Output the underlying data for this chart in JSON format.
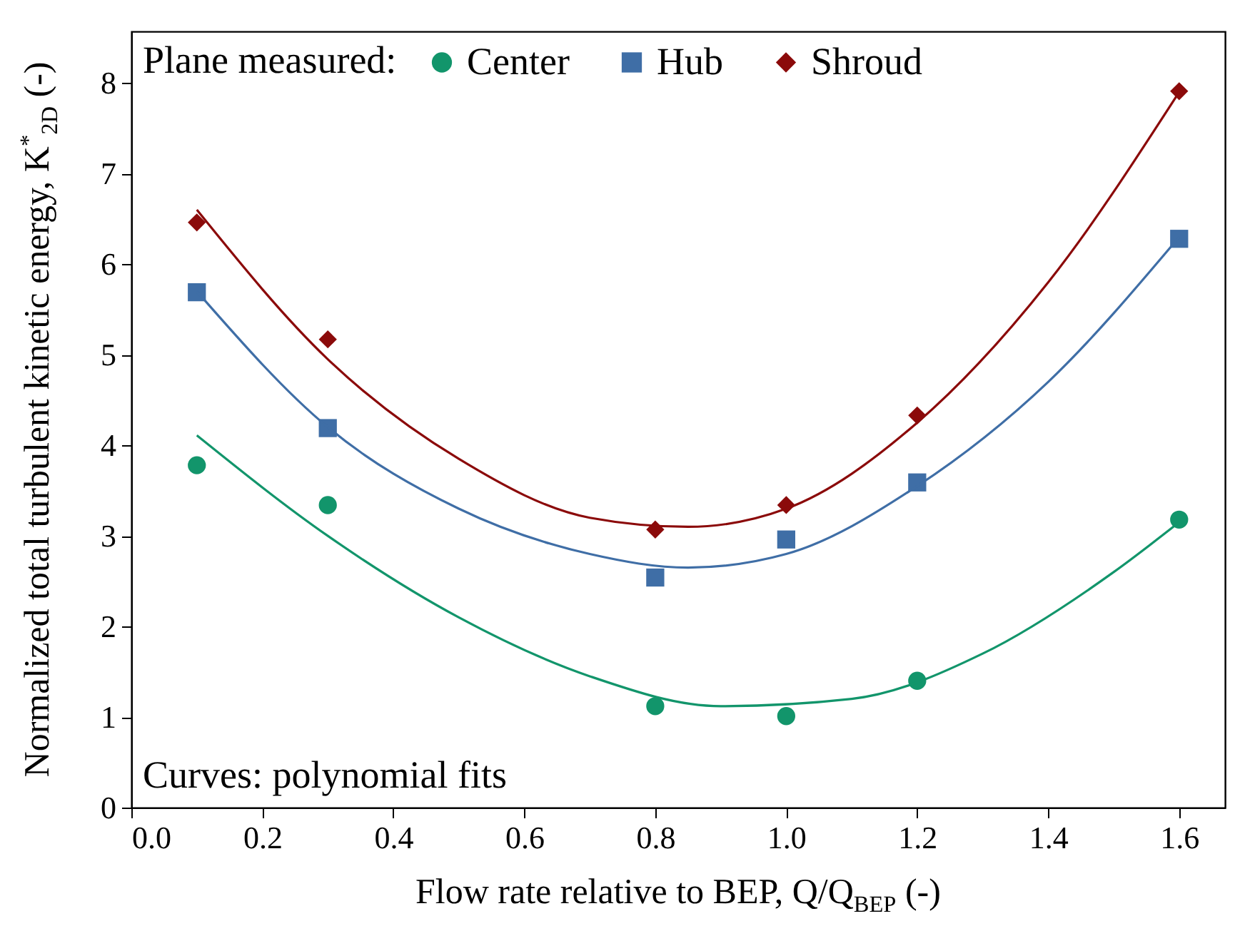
{
  "chart_data": {
    "type": "scatter",
    "xlabel": "Flow rate relative to BEP, Q/Q$_{BEP}$ (-)",
    "ylabel": "Normalized total turbulent kinetic energy, K$^{*}$$_{2D}$ (-)",
    "legend_title": "Plane measured:",
    "legend": "top",
    "grid": false,
    "x": [
      0.1,
      0.3,
      0.8,
      1.0,
      1.2,
      1.6
    ],
    "xlim": [
      0,
      1.67
    ],
    "xticks": [
      {
        "value": 0,
        "label": "0.0"
      },
      0.2,
      0.4,
      0.6,
      0.8,
      {
        "value": 1,
        "label": "1.0"
      },
      1.2,
      1.4,
      1.6
    ],
    "ylim": [
      0,
      8.57
    ],
    "yticks": [
      0,
      1,
      2,
      3,
      4,
      5,
      6,
      7,
      8
    ],
    "annotations": [
      "Curves: polynomial fits"
    ],
    "series": [
      {
        "name": "Center",
        "color": "#12956b",
        "marker": "circle",
        "values": [
          3.78,
          3.34,
          1.12,
          1.01,
          1.4,
          3.18
        ]
      },
      {
        "name": "Hub",
        "color": "#3f6ea6",
        "marker": "square",
        "values": [
          5.69,
          4.19,
          2.54,
          2.96,
          3.59,
          6.28
        ]
      },
      {
        "name": "Shroud",
        "color": "#8b0a0a",
        "marker": "diamond",
        "values": [
          6.46,
          5.17,
          3.07,
          3.34,
          4.33,
          7.91
        ]
      },
      {
        "type": "line",
        "color": "#12956b",
        "x": [
          0.1,
          0.3,
          0.5,
          0.7,
          0.9,
          1.1,
          1.3,
          1.5,
          1.6
        ],
        "values": [
          4.11,
          3.0,
          2.1,
          1.45,
          1.12,
          1.2,
          1.7,
          2.6,
          3.15
        ]
      },
      {
        "type": "line",
        "color": "#3f6ea6",
        "x": [
          0.1,
          0.3,
          0.5,
          0.7,
          0.85,
          1.0,
          1.2,
          1.4,
          1.6
        ],
        "values": [
          5.7,
          4.2,
          3.3,
          2.8,
          2.65,
          2.8,
          3.55,
          4.7,
          6.3
        ]
      },
      {
        "type": "line",
        "color": "#8b0a0a",
        "x": [
          0.1,
          0.3,
          0.5,
          0.7,
          0.85,
          1.0,
          1.2,
          1.4,
          1.6
        ],
        "values": [
          6.6,
          4.95,
          3.85,
          3.2,
          3.1,
          3.3,
          4.25,
          5.8,
          7.9
        ]
      }
    ]
  }
}
